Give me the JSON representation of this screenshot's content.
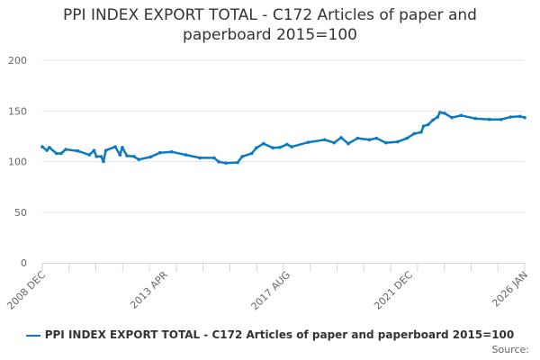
{
  "chart_data": {
    "type": "line",
    "title": "PPI INDEX EXPORT TOTAL - C172 Articles of paper and paperboard 2015=100",
    "title_lines": [
      "PPI INDEX EXPORT TOTAL - C172 Articles of paper and",
      "paperboard 2015=100"
    ],
    "xlabel": "",
    "ylabel": "",
    "ylim": [
      0,
      200
    ],
    "yticks": [
      "0",
      "50",
      "100",
      "150",
      "200"
    ],
    "ytick_values": [
      0,
      50,
      100,
      150,
      200
    ],
    "x_unit": "months since 2008 DEC",
    "xlim": [
      0,
      205
    ],
    "xtick_labels": [
      "2008 DEC",
      "2013 APR",
      "2017 AUG",
      "2021 DEC",
      "2026 JAN"
    ],
    "xtick_values": [
      0,
      52,
      104,
      156,
      205
    ],
    "grid": true,
    "legend_position": "bottom",
    "series": [
      {
        "name": "PPI INDEX EXPORT TOTAL - C172 Articles of paper and paperboard 2015=100",
        "color": "#0b7bc1",
        "x": [
          0,
          2,
          3,
          6,
          8,
          10,
          15,
          20,
          22,
          23,
          25,
          26,
          27,
          31,
          33,
          34,
          36,
          39,
          41,
          46,
          50,
          55,
          61,
          67,
          73,
          75,
          78,
          83,
          85,
          89,
          91,
          94,
          98,
          101,
          104,
          106,
          113,
          120,
          124,
          127,
          130,
          134,
          139,
          142,
          146,
          151,
          155,
          158,
          161,
          162,
          164,
          166,
          168,
          169,
          171,
          174,
          178,
          184,
          190,
          195,
          199,
          203,
          205
        ],
        "values": [
          114.6,
          111,
          114,
          108,
          108,
          112,
          110.5,
          106.6,
          111,
          105,
          105,
          100,
          111,
          114.6,
          106.6,
          114,
          105.7,
          105,
          102,
          104.5,
          108.7,
          109.6,
          106.6,
          103.6,
          103.6,
          99.7,
          98.5,
          99,
          105,
          108,
          113.5,
          117.7,
          113.5,
          114,
          117,
          114.6,
          119,
          121.5,
          118.6,
          123.6,
          117.7,
          123,
          121.5,
          123,
          118.6,
          119.5,
          123,
          127.5,
          129,
          135,
          136.5,
          141,
          144,
          148.5,
          147.6,
          143.4,
          145.5,
          142.5,
          141.6,
          141.6,
          144,
          144.6,
          143.4
        ]
      }
    ]
  },
  "source_label": "Source:"
}
